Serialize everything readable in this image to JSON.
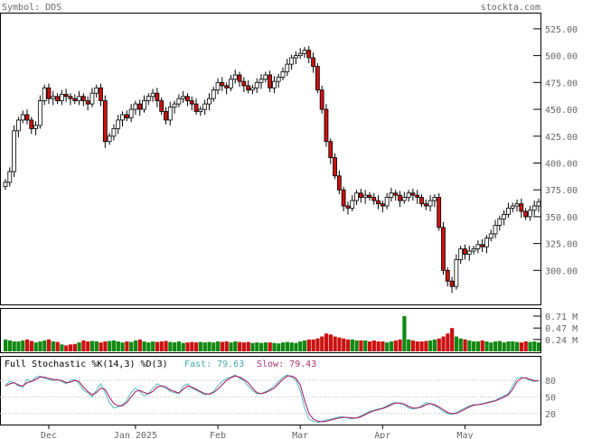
{
  "header": {
    "symbol": "Symbol: DDS",
    "site": "stockta.com"
  },
  "colors": {
    "up": "#ffffff",
    "down": "#cc1111",
    "vol_up": "#118811",
    "vol_down": "#cc1111",
    "fast": "#55bbbb",
    "slow": "#a01060",
    "label": "#666666",
    "grid": "#bbbbbb",
    "fast_label": "#44aaaa",
    "slow_label": "#b0306a"
  },
  "stochastic": {
    "title": "Full Stochastic %K(14,3) %D(3)",
    "fast_label": "Fast: 79.63",
    "slow_label": "Slow: 79.43"
  },
  "chart_data": [
    {
      "type": "candlestick",
      "title": "",
      "ylim": [
        270,
        535
      ],
      "y_ticks": [
        "525.00",
        "500.00",
        "475.00",
        "450.00",
        "425.00",
        "400.00",
        "375.00",
        "350.00",
        "325.00",
        "300.00"
      ],
      "x_labels": [
        "Dec",
        "Jan 2025",
        "Feb",
        "Mar",
        "Apr",
        "May"
      ],
      "closes": [
        382,
        392,
        430,
        440,
        445,
        440,
        432,
        435,
        458,
        470,
        460,
        462,
        458,
        464,
        462,
        460,
        458,
        462,
        458,
        455,
        465,
        470,
        458,
        420,
        425,
        432,
        440,
        445,
        442,
        450,
        455,
        450,
        458,
        462,
        465,
        458,
        448,
        440,
        452,
        455,
        460,
        462,
        458,
        455,
        448,
        450,
        455,
        460,
        468,
        475,
        472,
        470,
        478,
        482,
        476,
        472,
        468,
        470,
        475,
        478,
        482,
        470,
        476,
        480,
        485,
        492,
        498,
        500,
        502,
        505,
        498,
        490,
        468,
        450,
        420,
        405,
        388,
        375,
        360,
        358,
        365,
        372,
        368,
        370,
        368,
        365,
        362,
        360,
        368,
        372,
        370,
        365,
        368,
        372,
        370,
        368,
        362,
        360,
        365,
        368,
        340,
        300,
        290,
        285,
        310,
        320,
        315,
        318,
        320,
        324,
        322,
        330,
        334,
        342,
        348,
        352,
        358,
        360,
        362,
        355,
        350,
        356,
        360,
        364
      ],
      "volume": [
        0.24,
        0.22,
        0.2,
        0.2,
        0.22,
        0.24,
        0.21,
        0.18,
        0.2,
        0.22,
        0.24,
        0.2,
        0.19,
        0.14,
        0.12,
        0.14,
        0.15,
        0.18,
        0.22,
        0.2,
        0.21,
        0.2,
        0.18,
        0.2,
        0.21,
        0.22,
        0.2,
        0.18,
        0.2,
        0.19,
        0.22,
        0.24,
        0.2,
        0.18,
        0.2,
        0.19,
        0.2,
        0.21,
        0.19,
        0.18,
        0.2,
        0.17,
        0.18,
        0.19,
        0.18,
        0.19,
        0.18,
        0.19,
        0.18,
        0.2,
        0.19,
        0.2,
        0.18,
        0.2,
        0.19,
        0.18,
        0.19,
        0.17,
        0.18,
        0.17,
        0.18,
        0.18,
        0.17,
        0.16,
        0.18,
        0.19,
        0.18,
        0.17,
        0.2,
        0.22,
        0.24,
        0.24,
        0.26,
        0.3,
        0.36,
        0.34,
        0.3,
        0.28,
        0.26,
        0.24,
        0.24,
        0.22,
        0.22,
        0.22,
        0.2,
        0.22,
        0.2,
        0.2,
        0.18,
        0.2,
        0.22,
        0.24,
        0.71,
        0.24,
        0.22,
        0.2,
        0.2,
        0.21,
        0.22,
        0.24,
        0.26,
        0.3,
        0.36,
        0.47,
        0.3,
        0.26,
        0.24,
        0.22,
        0.2,
        0.2,
        0.22,
        0.2,
        0.18,
        0.2,
        0.21,
        0.18,
        0.2,
        0.2,
        0.19,
        0.18,
        0.2,
        0.19,
        0.2,
        0.18
      ],
      "volume_ticks": [
        "0.71 M",
        "0.47 M",
        "0.24 M"
      ],
      "stoch_ticks": [
        "80",
        "50",
        "20"
      ],
      "fast": [
        72,
        78,
        76,
        70,
        68,
        82,
        78,
        86,
        88,
        84,
        82,
        80,
        82,
        78,
        74,
        80,
        82,
        74,
        62,
        58,
        50,
        62,
        74,
        58,
        40,
        30,
        32,
        36,
        44,
        58,
        66,
        60,
        52,
        56,
        66,
        74,
        70,
        66,
        60,
        58,
        56,
        70,
        74,
        66,
        62,
        58,
        54,
        56,
        60,
        70,
        78,
        84,
        86,
        90,
        84,
        80,
        70,
        62,
        56,
        56,
        60,
        64,
        70,
        78,
        86,
        90,
        86,
        80,
        62,
        30,
        10,
        6,
        4,
        6,
        8,
        10,
        12,
        14,
        14,
        12,
        10,
        12,
        16,
        20,
        24,
        26,
        28,
        30,
        34,
        38,
        40,
        38,
        36,
        30,
        28,
        30,
        34,
        40,
        38,
        34,
        30,
        24,
        20,
        18,
        22,
        26,
        30,
        34,
        36,
        36,
        38,
        40,
        42,
        44,
        48,
        52,
        56,
        70,
        84,
        86,
        84,
        80,
        78,
        80
      ],
      "slow": [
        70,
        74,
        76,
        72,
        70,
        76,
        78,
        82,
        86,
        86,
        84,
        82,
        81,
        80,
        76,
        77,
        80,
        78,
        68,
        60,
        54,
        58,
        66,
        64,
        50,
        38,
        34,
        34,
        40,
        50,
        60,
        62,
        58,
        56,
        60,
        68,
        70,
        68,
        63,
        60,
        57,
        64,
        70,
        68,
        64,
        60,
        56,
        55,
        58,
        64,
        72,
        80,
        85,
        88,
        86,
        82,
        76,
        66,
        58,
        56,
        58,
        62,
        66,
        74,
        82,
        88,
        88,
        84,
        72,
        44,
        20,
        10,
        6,
        5,
        6,
        8,
        10,
        12,
        13,
        13,
        12,
        12,
        14,
        18,
        22,
        25,
        27,
        29,
        32,
        36,
        39,
        39,
        37,
        33,
        30,
        30,
        32,
        36,
        38,
        36,
        32,
        27,
        22,
        20,
        20,
        24,
        28,
        32,
        35,
        36,
        37,
        39,
        41,
        43,
        46,
        50,
        54,
        64,
        78,
        84,
        85,
        82,
        80,
        79
      ]
    }
  ]
}
